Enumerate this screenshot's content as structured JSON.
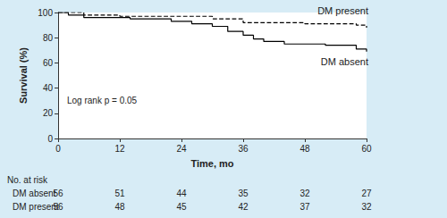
{
  "chart_data": {
    "type": "line",
    "xlabel": "Time, mo",
    "ylabel": "Survival (%)",
    "xlim": [
      0,
      60
    ],
    "xticks": [
      0,
      12,
      24,
      36,
      48,
      60
    ],
    "ylim": [
      0,
      100
    ],
    "yticks": [
      0,
      20,
      40,
      60,
      80,
      100
    ],
    "grid": false,
    "annotations": [
      "Log rank p = 0.05"
    ],
    "series": [
      {
        "name": "DM absent",
        "color": "#000000",
        "line_style": "solid",
        "x": [
          0,
          2,
          5,
          14,
          22,
          26,
          30,
          33,
          36,
          38,
          40,
          44,
          52,
          58,
          60
        ],
        "values": [
          100,
          98,
          96,
          95,
          93,
          91,
          89,
          85,
          82,
          79,
          77,
          75,
          74,
          71,
          69
        ]
      },
      {
        "name": "DM present",
        "color": "#000000",
        "line_style": "dashed",
        "x": [
          0,
          5,
          12,
          30,
          36,
          48,
          58,
          60
        ],
        "values": [
          100,
          98,
          97,
          95,
          92,
          91,
          90,
          88
        ]
      }
    ],
    "risk_table": {
      "title": "No. at risk",
      "times": [
        0,
        12,
        24,
        36,
        48,
        60
      ],
      "rows": [
        {
          "name": "DM absent",
          "values": [
            56,
            51,
            44,
            35,
            32,
            27
          ]
        },
        {
          "name": "DM present",
          "values": [
            56,
            48,
            45,
            42,
            37,
            32
          ]
        }
      ]
    }
  }
}
